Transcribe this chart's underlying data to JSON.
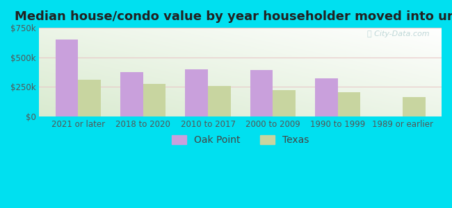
{
  "title": "Median house/condo value by year householder moved into unit",
  "categories": [
    "2021 or later",
    "2018 to 2020",
    "2010 to 2017",
    "2000 to 2009",
    "1990 to 1999",
    "1989 or earlier"
  ],
  "oak_point": [
    650000,
    375000,
    400000,
    390000,
    325000,
    0
  ],
  "texas": [
    310000,
    275000,
    255000,
    225000,
    205000,
    165000
  ],
  "oak_point_color": "#c9a0dc",
  "texas_color": "#c8d5a0",
  "background_outer": "#00e0f0",
  "background_inner_topleft": "#c8e8c8",
  "background_inner_topright": "#ffffff",
  "background_inner_bottomleft": "#b8ddb8",
  "background_inner_bottomright": "#e8f5e8",
  "ylim": [
    0,
    750000
  ],
  "yticks": [
    0,
    250000,
    500000,
    750000
  ],
  "ytick_labels": [
    "$0",
    "$250k",
    "$500k",
    "$750k"
  ],
  "legend_labels": [
    "Oak Point",
    "Texas"
  ],
  "bar_width": 0.35,
  "title_fontsize": 13,
  "tick_fontsize": 8.5,
  "legend_fontsize": 10
}
